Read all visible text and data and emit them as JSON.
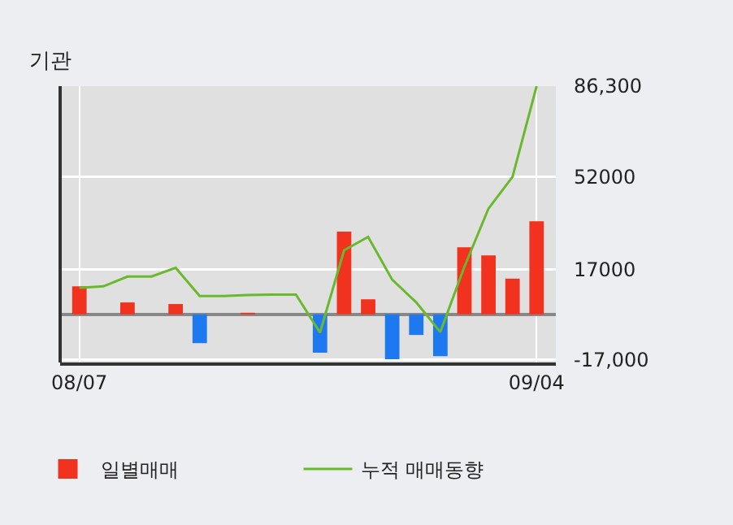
{
  "chart_data": {
    "type": "bar",
    "title": "기관",
    "categories": [
      "08/07",
      null,
      null,
      null,
      null,
      null,
      null,
      null,
      null,
      null,
      null,
      null,
      null,
      null,
      null,
      null,
      null,
      null,
      null,
      "09/04"
    ],
    "series": [
      {
        "name": "일별매매",
        "colors": [
          "#f0321e",
          "#f0321e",
          "#f0321e",
          "#f0321e",
          "#f0321e",
          "#1e78f0",
          "#f0321e",
          "#f0321e",
          "#f0321e",
          "#f0321e",
          "#1e78f0",
          "#f0321e",
          "#f0321e",
          "#1e78f0",
          "#1e78f0",
          "#1e78f0",
          "#f0321e",
          "#f0321e",
          "#f0321e",
          "#f0321e"
        ],
        "values": [
          10600,
          0,
          4500,
          0,
          3900,
          -10900,
          0,
          600,
          0,
          0,
          -14500,
          31300,
          5700,
          -17000,
          -7800,
          -15800,
          25400,
          22300,
          13500,
          35200
        ]
      },
      {
        "name": "누적 매매동향",
        "type": "line",
        "color": "#6ab82e",
        "values": [
          10000,
          10600,
          14300,
          14300,
          17600,
          6900,
          6900,
          7300,
          7500,
          7500,
          -6900,
          24200,
          29300,
          13100,
          4500,
          -6700,
          18000,
          40000,
          52000,
          86300
        ]
      }
    ],
    "ylim": [
      -18200,
      86300
    ],
    "yticks": [
      {
        "value": -17000,
        "label": "-17,000"
      },
      17000,
      52000,
      {
        "value": 86300,
        "label": "86,300"
      }
    ],
    "grid": true,
    "legend": "bottom"
  }
}
